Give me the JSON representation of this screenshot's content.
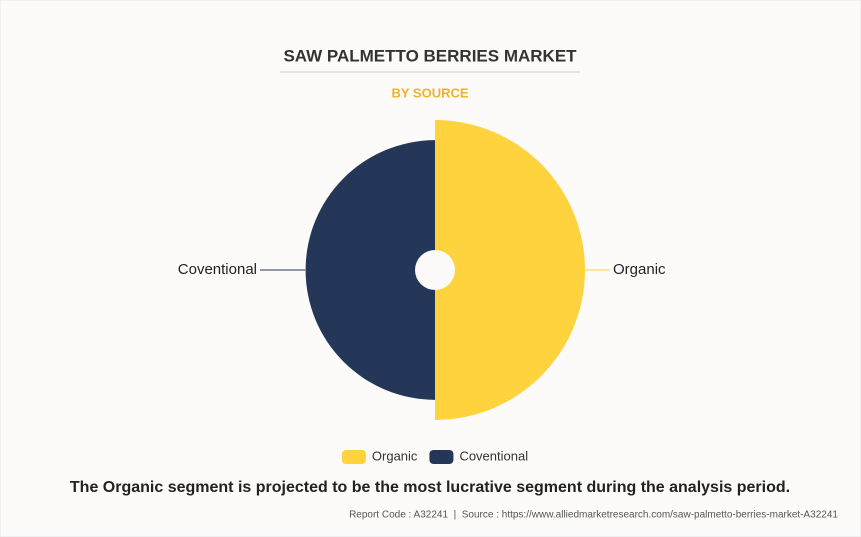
{
  "chart_data": {
    "type": "rose",
    "title": "SAW PALMETTO BERRIES MARKET",
    "subtitle": "BY SOURCE",
    "categories": [
      "Organic",
      "Coventional"
    ],
    "values": [
      53.6,
      46.4
    ],
    "colors": [
      "#FFD33D",
      "#253759"
    ]
  },
  "footer": {
    "note": "The Organic segment is projected to be the most lucrative segment during the analysis period.",
    "source": "Report Code : A32241  |  Source : https://www.alliedmarketresearch.com/saw-palmetto-berries-market-A32241"
  }
}
